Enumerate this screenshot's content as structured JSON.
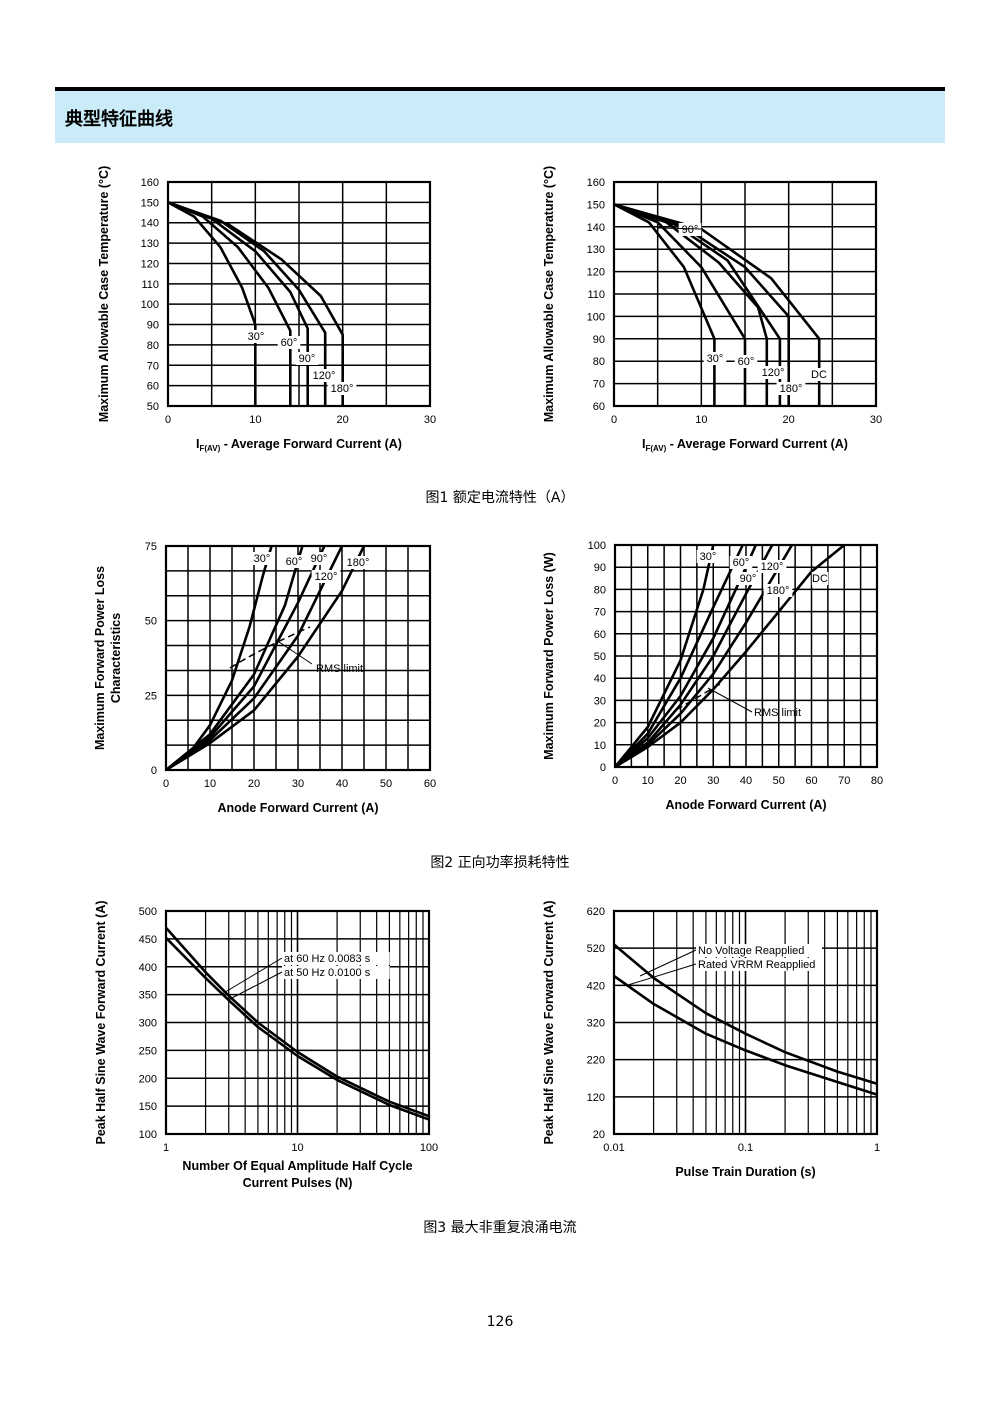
{
  "header": {
    "title": "典型特征曲线"
  },
  "captions": {
    "fig1": "图1  额定电流特性（A）",
    "fig2": "图2  正向功率损耗特性",
    "fig3": "图3  最大非重复浪涌电流"
  },
  "page_number": "126",
  "chart_data": [
    {
      "id": "c1",
      "type": "line",
      "ylabel": "Maximum Allowable Case Temperature (°C)",
      "xlabel_parts": [
        "I",
        "F(AV)",
        " - Average Forward Current (A)"
      ],
      "xlim": [
        0,
        30
      ],
      "ylim": [
        50,
        160
      ],
      "xticks": [
        0,
        10,
        20,
        30
      ],
      "yticks": [
        50,
        60,
        70,
        80,
        90,
        100,
        110,
        120,
        130,
        140,
        150,
        160
      ],
      "series": [
        {
          "name": "30°",
          "points": [
            [
              0,
              150
            ],
            [
              3,
              143
            ],
            [
              6,
              128
            ],
            [
              8.5,
              108
            ],
            [
              10,
              90
            ],
            [
              10,
              50
            ]
          ]
        },
        {
          "name": "60°",
          "points": [
            [
              0,
              150
            ],
            [
              4,
              143
            ],
            [
              8,
              128
            ],
            [
              11.5,
              108
            ],
            [
              14,
              87
            ],
            [
              14,
              50
            ]
          ]
        },
        {
          "name": "90°",
          "points": [
            [
              0,
              150
            ],
            [
              5,
              142
            ],
            [
              10,
              126
            ],
            [
              14,
              106
            ],
            [
              16,
              88
            ],
            [
              16,
              50
            ]
          ]
        },
        {
          "name": "120°",
          "points": [
            [
              0,
              150
            ],
            [
              6,
              141
            ],
            [
              11,
              126
            ],
            [
              15,
              107
            ],
            [
              18,
              86
            ],
            [
              18,
              50
            ]
          ]
        },
        {
          "name": "180°",
          "points": [
            [
              0,
              150
            ],
            [
              7,
              139
            ],
            [
              13,
              122
            ],
            [
              17.5,
              104
            ],
            [
              20,
              85
            ],
            [
              20,
              50
            ]
          ]
        }
      ]
    },
    {
      "id": "c2",
      "type": "line",
      "ylabel": "Maximum Allowable Case Temperature (°C)",
      "xlabel_parts": [
        "I",
        "F(AV)",
        " - Average Forward Current (A)"
      ],
      "xlim": [
        0,
        30
      ],
      "ylim": [
        60,
        160
      ],
      "xticks": [
        0,
        10,
        20,
        30
      ],
      "yticks": [
        60,
        70,
        80,
        90,
        100,
        110,
        120,
        130,
        140,
        150,
        160
      ],
      "series": [
        {
          "name": "30°",
          "points": [
            [
              0,
              150
            ],
            [
              4,
              142
            ],
            [
              8,
              122
            ],
            [
              11.5,
              90
            ],
            [
              11.5,
              60
            ]
          ]
        },
        {
          "name": "60°",
          "points": [
            [
              0,
              150
            ],
            [
              5,
              142
            ],
            [
              10,
              122
            ],
            [
              15,
              90
            ],
            [
              15,
              60
            ]
          ]
        },
        {
          "name": "90°",
          "points": [
            [
              0,
              150
            ],
            [
              6,
              142
            ],
            [
              12,
              124
            ],
            [
              16.5,
              104
            ],
            [
              17.5,
              90
            ],
            [
              17.5,
              60
            ]
          ]
        },
        {
          "name": "120°",
          "points": [
            [
              0,
              150
            ],
            [
              7,
              141
            ],
            [
              13,
              125
            ],
            [
              19,
              90
            ],
            [
              19,
              60
            ]
          ]
        },
        {
          "name": "180°",
          "points": [
            [
              0,
              150
            ],
            [
              8,
              140
            ],
            [
              15,
              122
            ],
            [
              20,
              100
            ],
            [
              20,
              90
            ],
            [
              20,
              60
            ]
          ]
        },
        {
          "name": "DC",
          "points": [
            [
              0,
              150
            ],
            [
              10,
              139
            ],
            [
              18,
              117
            ],
            [
              23.5,
              90
            ],
            [
              23.5,
              60
            ]
          ]
        }
      ]
    },
    {
      "id": "c3",
      "type": "line",
      "ylabel_lines": [
        "Maximum Forward Power Loss",
        "Characteristics"
      ],
      "xlabel": "Anode Forward Current (A)",
      "xlim": [
        0,
        60
      ],
      "ylim": [
        0,
        75
      ],
      "xticks": [
        0,
        10,
        20,
        30,
        40,
        50,
        60
      ],
      "yticks": [
        0,
        25,
        50,
        75
      ],
      "annotation": "RMS limit",
      "series": [
        {
          "name": "30°",
          "points": [
            [
              0,
              0
            ],
            [
              5,
              5
            ],
            [
              10,
              15
            ],
            [
              15,
              30
            ],
            [
              19,
              48
            ],
            [
              22,
              65
            ],
            [
              24,
              75
            ]
          ]
        },
        {
          "name": "60°",
          "points": [
            [
              0,
              0
            ],
            [
              10,
              12
            ],
            [
              20,
              32
            ],
            [
              27,
              55
            ],
            [
              31,
              75
            ]
          ]
        },
        {
          "name": "90°",
          "points": [
            [
              0,
              0
            ],
            [
              10,
              11
            ],
            [
              20,
              28
            ],
            [
              30,
              56
            ],
            [
              36,
              75
            ]
          ]
        },
        {
          "name": "120°",
          "points": [
            [
              0,
              0
            ],
            [
              10,
              10
            ],
            [
              20,
              24
            ],
            [
              30,
              45
            ],
            [
              40,
              75
            ]
          ]
        },
        {
          "name": "180°",
          "points": [
            [
              0,
              0
            ],
            [
              10,
              9
            ],
            [
              20,
              20
            ],
            [
              30,
              38
            ],
            [
              40,
              60
            ],
            [
              45,
              75
            ]
          ]
        }
      ]
    },
    {
      "id": "c4",
      "type": "line",
      "ylabel": "Maximum Forward Power Loss (W)",
      "xlabel": "Anode Forward Current (A)",
      "xlim": [
        0,
        80
      ],
      "ylim": [
        0,
        100
      ],
      "xticks": [
        0,
        10,
        20,
        30,
        40,
        50,
        60,
        70,
        80
      ],
      "yticks": [
        0,
        10,
        20,
        30,
        40,
        50,
        60,
        70,
        80,
        90,
        100
      ],
      "annotation": "RMS limit",
      "series": [
        {
          "name": "30°",
          "points": [
            [
              0,
              0
            ],
            [
              10,
              18
            ],
            [
              20,
              48
            ],
            [
              27,
              80
            ],
            [
              30,
              100
            ]
          ]
        },
        {
          "name": "60°",
          "points": [
            [
              0,
              0
            ],
            [
              10,
              15
            ],
            [
              20,
              40
            ],
            [
              30,
              72
            ],
            [
              39,
              100
            ]
          ]
        },
        {
          "name": "90°",
          "points": [
            [
              0,
              0
            ],
            [
              10,
              13
            ],
            [
              20,
              32
            ],
            [
              30,
              58
            ],
            [
              40,
              90
            ],
            [
              43,
              100
            ]
          ]
        },
        {
          "name": "120°",
          "points": [
            [
              0,
              0
            ],
            [
              10,
              11
            ],
            [
              20,
              28
            ],
            [
              30,
              50
            ],
            [
              40,
              78
            ],
            [
              48,
              100
            ]
          ]
        },
        {
          "name": "180°",
          "points": [
            [
              0,
              0
            ],
            [
              10,
              10
            ],
            [
              20,
              24
            ],
            [
              30,
              42
            ],
            [
              40,
              65
            ],
            [
              50,
              90
            ],
            [
              54,
              100
            ]
          ]
        },
        {
          "name": "DC",
          "points": [
            [
              0,
              0
            ],
            [
              10,
              9
            ],
            [
              20,
              20
            ],
            [
              30,
              35
            ],
            [
              40,
              52
            ],
            [
              50,
              70
            ],
            [
              60,
              88
            ],
            [
              70,
              100
            ]
          ]
        }
      ]
    },
    {
      "id": "c5",
      "type": "line",
      "ylabel": "Peak Half Sine Wave Forward Current (A)",
      "xlabel_lines": [
        "Number Of Equal Amplitude Half Cycle",
        "Current Pulses (N)"
      ],
      "xscale": "log",
      "xlim": [
        1,
        100
      ],
      "ylim": [
        100,
        500
      ],
      "xticks": [
        1,
        10,
        100
      ],
      "yticks": [
        100,
        150,
        200,
        250,
        300,
        350,
        400,
        450,
        500
      ],
      "series": [
        {
          "name": "at 60 Hz 0.0083 s",
          "points": [
            [
              1,
              470
            ],
            [
              2,
              390
            ],
            [
              3,
              348
            ],
            [
              5,
              300
            ],
            [
              10,
              247
            ],
            [
              20,
              203
            ],
            [
              50,
              158
            ],
            [
              100,
              132
            ]
          ]
        },
        {
          "name": "at 50 Hz 0.0100 s",
          "points": [
            [
              1,
              452
            ],
            [
              2,
              380
            ],
            [
              3,
              340
            ],
            [
              5,
              292
            ],
            [
              10,
              240
            ],
            [
              20,
              197
            ],
            [
              50,
              152
            ],
            [
              100,
              126
            ]
          ]
        }
      ]
    },
    {
      "id": "c6",
      "type": "line",
      "ylabel": "Peak Half Sine Wave Forward Current (A)",
      "xlabel": "Pulse Train Duration (s)",
      "xscale": "log",
      "xlim": [
        0.01,
        1
      ],
      "ylim": [
        20,
        620
      ],
      "xticks": [
        0.01,
        0.1,
        1
      ],
      "xticklabels": [
        "0.01",
        "0.1",
        "1"
      ],
      "yticks": [
        20,
        120,
        220,
        320,
        420,
        520,
        620
      ],
      "series": [
        {
          "name": "No Voltage Reapplied",
          "points": [
            [
              0.01,
              530
            ],
            [
              0.02,
              440
            ],
            [
              0.05,
              345
            ],
            [
              0.1,
              290
            ],
            [
              0.2,
              240
            ],
            [
              0.5,
              188
            ],
            [
              1,
              155
            ]
          ]
        },
        {
          "name": "Rated V_RRM Reapplied",
          "points": [
            [
              0.01,
              445
            ],
            [
              0.02,
              370
            ],
            [
              0.05,
              290
            ],
            [
              0.1,
              245
            ],
            [
              0.2,
              205
            ],
            [
              0.5,
              160
            ],
            [
              1,
              126
            ]
          ]
        }
      ]
    }
  ]
}
